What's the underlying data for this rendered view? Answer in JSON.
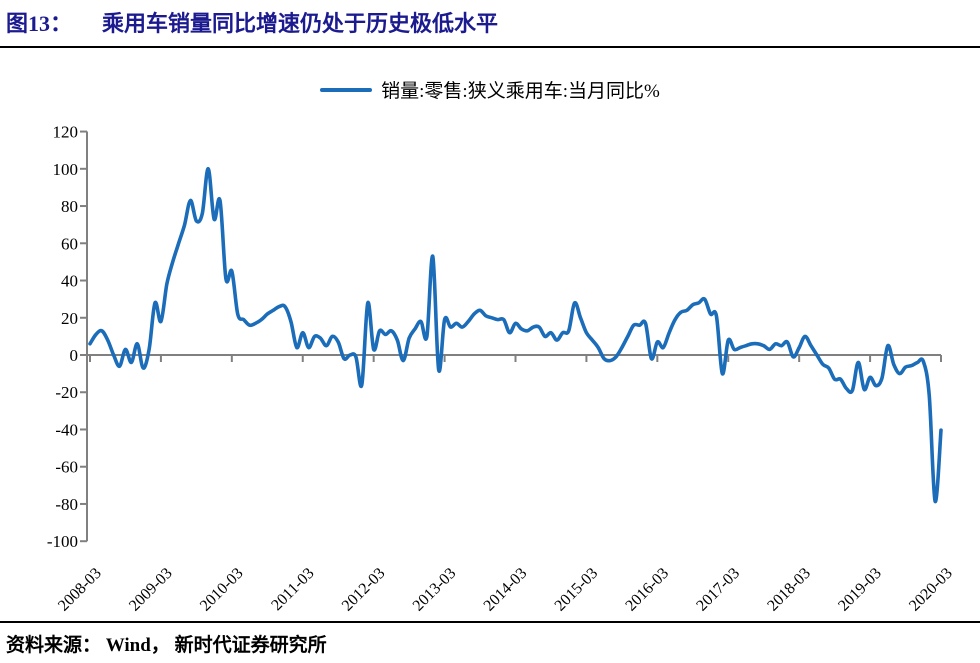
{
  "header": {
    "figure_label": "图13：",
    "title": "乘用车销量同比增速仍处于历史极低水平"
  },
  "footer": {
    "source": "资料来源： Wind， 新时代证券研究所"
  },
  "colors": {
    "title_navy": "#1b1b8f",
    "line_blue": "#1b6cb9",
    "axis_gray": "#808080",
    "text_black": "#000000",
    "rule_black": "#000000"
  },
  "chart_data": {
    "type": "line",
    "title": "",
    "legend": [
      "销量:零售:狭义乘用车:当月同比%"
    ],
    "legend_position": "top-center",
    "grid": "zero-line-only",
    "ylim": [
      -100,
      120
    ],
    "ytick_step": 20,
    "yticks": [
      120,
      100,
      80,
      60,
      40,
      20,
      0,
      -20,
      -40,
      -60,
      -80,
      -100
    ],
    "xticks": [
      "2008-03",
      "2009-03",
      "2010-03",
      "2011-03",
      "2012-03",
      "2013-03",
      "2014-03",
      "2015-03",
      "2016-03",
      "2017-03",
      "2018-03",
      "2019-03",
      "2020-03"
    ],
    "x_label_rotation": -45,
    "x": [
      "2008-03",
      "2008-04",
      "2008-05",
      "2008-06",
      "2008-07",
      "2008-08",
      "2008-09",
      "2008-10",
      "2008-11",
      "2008-12",
      "2009-01",
      "2009-02",
      "2009-03",
      "2009-04",
      "2009-05",
      "2009-06",
      "2009-07",
      "2009-08",
      "2009-09",
      "2009-10",
      "2009-11",
      "2009-12",
      "2010-01",
      "2010-02",
      "2010-03",
      "2010-04",
      "2010-05",
      "2010-06",
      "2010-07",
      "2010-08",
      "2010-09",
      "2010-10",
      "2010-11",
      "2010-12",
      "2011-01",
      "2011-02",
      "2011-03",
      "2011-04",
      "2011-05",
      "2011-06",
      "2011-07",
      "2011-08",
      "2011-09",
      "2011-10",
      "2011-11",
      "2011-12",
      "2012-01",
      "2012-02",
      "2012-03",
      "2012-04",
      "2012-05",
      "2012-06",
      "2012-07",
      "2012-08",
      "2012-09",
      "2012-10",
      "2012-11",
      "2012-12",
      "2013-01",
      "2013-02",
      "2013-03",
      "2013-04",
      "2013-05",
      "2013-06",
      "2013-07",
      "2013-08",
      "2013-09",
      "2013-10",
      "2013-11",
      "2013-12",
      "2014-01",
      "2014-02",
      "2014-03",
      "2014-04",
      "2014-05",
      "2014-06",
      "2014-07",
      "2014-08",
      "2014-09",
      "2014-10",
      "2014-11",
      "2014-12",
      "2015-01",
      "2015-02",
      "2015-03",
      "2015-04",
      "2015-05",
      "2015-06",
      "2015-07",
      "2015-08",
      "2015-09",
      "2015-10",
      "2015-11",
      "2015-12",
      "2016-01",
      "2016-02",
      "2016-03",
      "2016-04",
      "2016-05",
      "2016-06",
      "2016-07",
      "2016-08",
      "2016-09",
      "2016-10",
      "2016-11",
      "2016-12",
      "2017-01",
      "2017-02",
      "2017-03",
      "2017-04",
      "2017-05",
      "2017-06",
      "2017-07",
      "2017-08",
      "2017-09",
      "2017-10",
      "2017-11",
      "2017-12",
      "2018-01",
      "2018-02",
      "2018-03",
      "2018-04",
      "2018-05",
      "2018-06",
      "2018-07",
      "2018-08",
      "2018-09",
      "2018-10",
      "2018-11",
      "2018-12",
      "2019-01",
      "2019-02",
      "2019-03",
      "2019-04",
      "2019-05",
      "2019-06",
      "2019-07",
      "2019-08",
      "2019-09",
      "2019-10",
      "2019-11",
      "2019-12",
      "2020-01",
      "2020-02",
      "2020-03"
    ],
    "series": [
      {
        "name": "销量:零售:狭义乘用车:当月同比%",
        "color": "#1b6cb9",
        "values": [
          6,
          11,
          13,
          8,
          0,
          -6,
          3,
          -4,
          6,
          -7,
          3,
          28,
          18,
          38,
          50,
          60,
          70,
          83,
          72,
          76,
          100,
          73,
          83,
          41,
          45,
          22,
          19,
          16,
          17,
          19,
          22,
          24,
          26,
          26,
          18,
          4,
          12,
          4,
          10,
          9,
          5,
          10,
          7,
          -2,
          0,
          -1,
          -16,
          28,
          3,
          13,
          11,
          13,
          8,
          -3,
          9,
          14,
          18,
          10,
          53,
          -8,
          19,
          15,
          17,
          15,
          18,
          22,
          24,
          21,
          20,
          19,
          19,
          12,
          17,
          14,
          13,
          15,
          15,
          10,
          12,
          8,
          12,
          13,
          28,
          20,
          12,
          8,
          4,
          -2,
          -3,
          -1,
          4,
          10,
          16,
          16,
          17,
          -2,
          7,
          4,
          12,
          19,
          23,
          24,
          27,
          28,
          30,
          22,
          21,
          -10,
          8,
          3,
          4,
          5,
          6,
          6,
          5,
          3,
          6,
          5,
          7,
          -1,
          4,
          10,
          5,
          0,
          -5,
          -7,
          -13,
          -13,
          -18,
          -19,
          -4,
          -18.5,
          -12,
          -16.5,
          -12.5,
          5,
          -5,
          -10,
          -6.5,
          -5.7,
          -4.1,
          -3.4,
          -21.5,
          -78.5,
          -40.4
        ]
      }
    ]
  }
}
